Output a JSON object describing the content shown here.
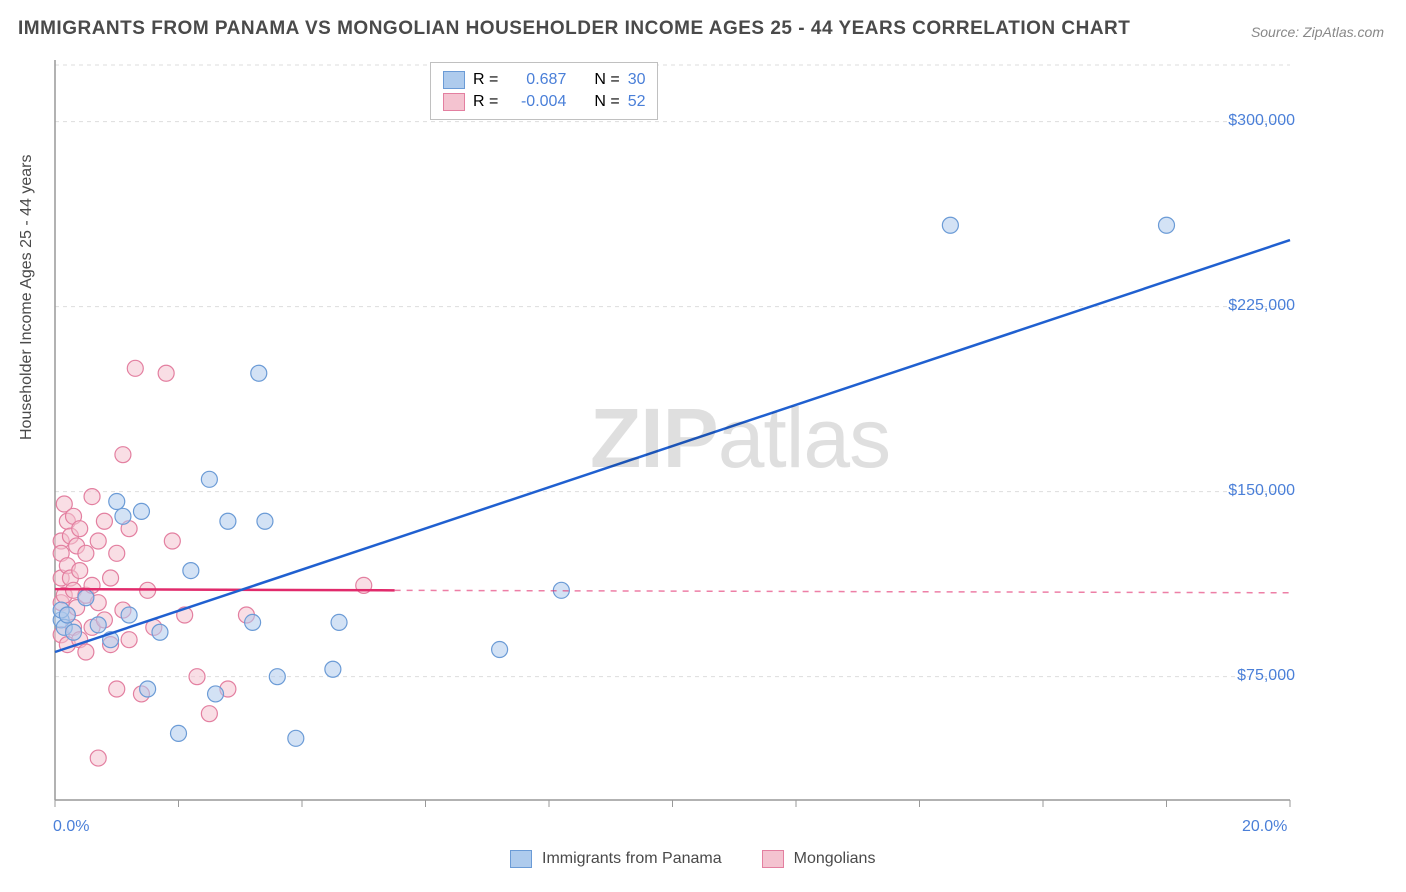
{
  "title": "IMMIGRANTS FROM PANAMA VS MONGOLIAN HOUSEHOLDER INCOME AGES 25 - 44 YEARS CORRELATION CHART",
  "source": "Source: ZipAtlas.com",
  "yaxis_label": "Householder Income Ages 25 - 44 years",
  "watermark_a": "ZIP",
  "watermark_b": "atlas",
  "chart": {
    "type": "scatter",
    "background_color": "#ffffff",
    "grid_color": "#dddddd",
    "axis_color": "#999999",
    "xlim": [
      0,
      20
    ],
    "ylim": [
      25000,
      325000
    ],
    "x_ticks": [
      0,
      20
    ],
    "x_tick_labels": [
      "0.0%",
      "20.0%"
    ],
    "y_ticks": [
      75000,
      150000,
      225000,
      300000
    ],
    "y_tick_labels": [
      "$75,000",
      "$150,000",
      "$225,000",
      "$300,000"
    ],
    "tick_label_color": "#4a7fd8",
    "tick_fontsize": 16,
    "marker_radius": 8,
    "marker_opacity": 0.55,
    "series": [
      {
        "name": "Immigrants from Panama",
        "fill_color": "#aecbed",
        "stroke_color": "#6b9bd6",
        "trend_color": "#2060d0",
        "trend_width": 2.5,
        "trend_x": [
          0,
          20
        ],
        "trend_y": [
          85000,
          252000
        ],
        "R": "0.687",
        "N": "30",
        "points": [
          [
            0.1,
            98000
          ],
          [
            0.1,
            102000
          ],
          [
            0.15,
            95000
          ],
          [
            0.2,
            100000
          ],
          [
            0.3,
            93000
          ],
          [
            0.5,
            107000
          ],
          [
            0.7,
            96000
          ],
          [
            0.9,
            90000
          ],
          [
            1.0,
            146000
          ],
          [
            1.1,
            140000
          ],
          [
            1.2,
            100000
          ],
          [
            1.4,
            142000
          ],
          [
            1.5,
            70000
          ],
          [
            1.7,
            93000
          ],
          [
            2.0,
            52000
          ],
          [
            2.2,
            118000
          ],
          [
            2.5,
            155000
          ],
          [
            2.6,
            68000
          ],
          [
            2.8,
            138000
          ],
          [
            3.2,
            97000
          ],
          [
            3.3,
            198000
          ],
          [
            3.4,
            138000
          ],
          [
            3.6,
            75000
          ],
          [
            3.9,
            50000
          ],
          [
            4.5,
            78000
          ],
          [
            4.6,
            97000
          ],
          [
            7.2,
            86000
          ],
          [
            8.2,
            110000
          ],
          [
            14.5,
            258000
          ],
          [
            18.0,
            258000
          ]
        ]
      },
      {
        "name": "Mongolians",
        "fill_color": "#f4c3d0",
        "stroke_color": "#e37fa0",
        "trend_color": "#e12a6b",
        "trend_width": 2.5,
        "trend_x": [
          0,
          5.5
        ],
        "trend_y": [
          110500,
          110000
        ],
        "trend_dash_x": [
          5.5,
          20
        ],
        "trend_dash_y": [
          110000,
          109000
        ],
        "R": "-0.004",
        "N": "52",
        "points": [
          [
            0.1,
            130000
          ],
          [
            0.1,
            125000
          ],
          [
            0.1,
            115000
          ],
          [
            0.1,
            105000
          ],
          [
            0.1,
            92000
          ],
          [
            0.15,
            145000
          ],
          [
            0.15,
            108000
          ],
          [
            0.2,
            138000
          ],
          [
            0.2,
            120000
          ],
          [
            0.2,
            100000
          ],
          [
            0.2,
            88000
          ],
          [
            0.25,
            132000
          ],
          [
            0.25,
            115000
          ],
          [
            0.3,
            140000
          ],
          [
            0.3,
            110000
          ],
          [
            0.3,
            95000
          ],
          [
            0.35,
            128000
          ],
          [
            0.35,
            103000
          ],
          [
            0.4,
            135000
          ],
          [
            0.4,
            118000
          ],
          [
            0.4,
            90000
          ],
          [
            0.5,
            125000
          ],
          [
            0.5,
            108000
          ],
          [
            0.5,
            85000
          ],
          [
            0.6,
            148000
          ],
          [
            0.6,
            112000
          ],
          [
            0.6,
            95000
          ],
          [
            0.7,
            130000
          ],
          [
            0.7,
            105000
          ],
          [
            0.7,
            42000
          ],
          [
            0.8,
            138000
          ],
          [
            0.8,
            98000
          ],
          [
            0.9,
            115000
          ],
          [
            0.9,
            88000
          ],
          [
            1.0,
            125000
          ],
          [
            1.0,
            70000
          ],
          [
            1.1,
            165000
          ],
          [
            1.1,
            102000
          ],
          [
            1.2,
            135000
          ],
          [
            1.2,
            90000
          ],
          [
            1.3,
            200000
          ],
          [
            1.4,
            68000
          ],
          [
            1.5,
            110000
          ],
          [
            1.6,
            95000
          ],
          [
            1.8,
            198000
          ],
          [
            1.9,
            130000
          ],
          [
            2.1,
            100000
          ],
          [
            2.3,
            75000
          ],
          [
            2.5,
            60000
          ],
          [
            2.8,
            70000
          ],
          [
            3.1,
            100000
          ],
          [
            5.0,
            112000
          ]
        ]
      }
    ]
  },
  "legend_top": {
    "r_label": "R =",
    "n_label": "N =",
    "value_color": "#4a7fd8",
    "label_color": "#4a4a4a"
  },
  "legend_bottom": {
    "series1": "Immigrants from Panama",
    "series2": "Mongolians"
  }
}
